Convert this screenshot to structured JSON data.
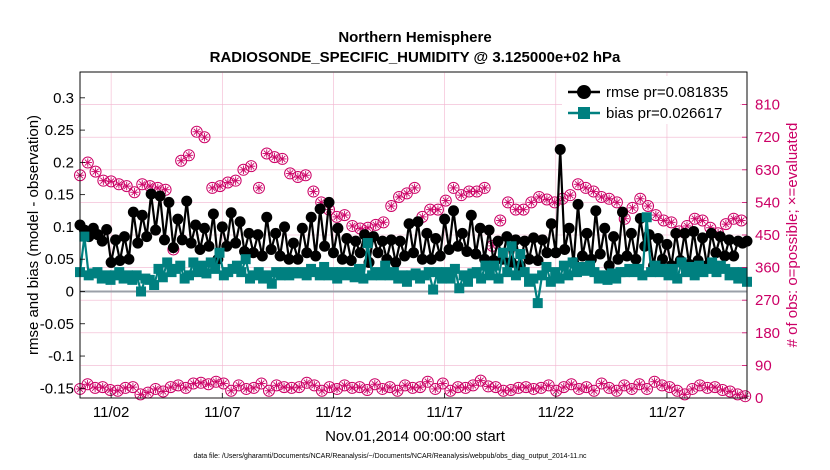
{
  "chart_data": {
    "type": "line",
    "title": "Northern Hemisphere",
    "subtitle": "RADIOSONDE_SPECIFIC_HUMIDITY @ 3.125000e+02 hPa",
    "xlabel": "Nov.01,2014 00:00:00 start",
    "ylabel": "rmse and bias (model - observation)",
    "y2label": "# of obs: o=possible; ×=evaluated",
    "footnote": "data file: /Users/gharamti/Documents/NCAR/Reanalysis/~/Documents/NCAR/Reanalysis/webpub/obs_diag_output_2014-11.nc",
    "xlim": [
      0.6,
      30.6
    ],
    "ylim": [
      -0.165,
      0.34
    ],
    "y2lim": [
      0,
      900
    ],
    "x_ticks": [
      2,
      7,
      12,
      17,
      22,
      27
    ],
    "x_tick_labels": [
      "11/02",
      "11/07",
      "11/12",
      "11/17",
      "11/22",
      "11/27"
    ],
    "y_ticks": [
      -0.15,
      -0.1,
      -0.05,
      0,
      0.05,
      0.1,
      0.15,
      0.2,
      0.25,
      0.3
    ],
    "y_tick_labels": [
      "-0.15",
      "-0.1",
      "-0.05",
      "0",
      "0.05",
      "0.1",
      "0.15",
      "0.2",
      "0.25",
      "0.3"
    ],
    "y2_ticks": [
      0,
      90,
      180,
      270,
      360,
      450,
      540,
      630,
      720,
      810
    ],
    "y2_tick_labels": [
      "0",
      "90",
      "180",
      "270",
      "360",
      "450",
      "540",
      "630",
      "720",
      "810"
    ],
    "zero_line": 0,
    "colors": {
      "rmse": "#000000",
      "bias": "#008080",
      "obs": "#cc0066",
      "zero_line": "#9aa0a8",
      "grid": "#f2b5cf",
      "left_axis": "#000000",
      "right_axis": "#cc0066"
    },
    "legend_position": "top-right",
    "series": [
      {
        "name": "rmse",
        "label": "rmse pr=0.081835",
        "axis": "left",
        "values": [
          0.103,
          0.095,
          0.085,
          0.098,
          0.088,
          0.078,
          0.096,
          0.045,
          0.08,
          0.048,
          0.085,
          0.05,
          0.123,
          0.075,
          0.118,
          0.085,
          0.151,
          0.095,
          0.148,
          0.08,
          0.138,
          0.068,
          0.112,
          0.08,
          0.14,
          0.075,
          0.103,
          0.065,
          0.098,
          0.07,
          0.12,
          0.05,
          0.1,
          0.07,
          0.122,
          0.075,
          0.108,
          0.062,
          0.09,
          0.06,
          0.088,
          0.055,
          0.115,
          0.065,
          0.09,
          0.055,
          0.1,
          0.05,
          0.075,
          0.05,
          0.098,
          0.06,
          0.115,
          0.055,
          0.128,
          0.07,
          0.138,
          0.06,
          0.098,
          0.05,
          0.082,
          0.048,
          0.078,
          0.06,
          0.088,
          0.045,
          0.085,
          0.06,
          0.078,
          0.05,
          0.08,
          0.045,
          0.078,
          0.055,
          0.105,
          0.06,
          0.108,
          0.05,
          0.09,
          0.05,
          0.082,
          0.055,
          0.112,
          0.065,
          0.125,
          0.07,
          0.09,
          0.062,
          0.118,
          0.058,
          0.098,
          0.05,
          0.095,
          0.048,
          0.078,
          0.05,
          0.085,
          0.045,
          0.08,
          0.04,
          0.078,
          0.05,
          0.083,
          0.048,
          0.08,
          0.06,
          0.105,
          0.06,
          0.22,
          0.065,
          0.098,
          0.045,
          0.135,
          0.055,
          0.09,
          0.05,
          0.125,
          0.058,
          0.098,
          0.04,
          0.085,
          0.05,
          0.123,
          0.055,
          0.09,
          0.05,
          0.113,
          0.07,
          0.088,
          0.04,
          0.082,
          0.05,
          0.073,
          0.04,
          0.09,
          0.048,
          0.09,
          0.042,
          0.093,
          0.048,
          0.083,
          0.04,
          0.09,
          0.06,
          0.085,
          0.055,
          0.08,
          0.055,
          0.078,
          0.075,
          0.078
        ]
      },
      {
        "name": "bias",
        "label": "bias pr=0.026617",
        "axis": "left",
        "values": [
          0.03,
          0.085,
          0.025,
          0.028,
          0.03,
          0.02,
          0.025,
          0.018,
          0.025,
          0.03,
          0.02,
          0.025,
          0.018,
          0.025,
          0.0,
          0.02,
          0.018,
          0.01,
          0.035,
          0.022,
          0.045,
          0.03,
          0.035,
          0.04,
          0.02,
          0.025,
          0.045,
          0.03,
          0.04,
          0.028,
          0.045,
          0.035,
          0.06,
          0.025,
          0.03,
          0.035,
          0.04,
          0.03,
          0.05,
          0.02,
          0.025,
          0.03,
          0.02,
          0.025,
          0.012,
          0.03,
          0.025,
          0.03,
          0.025,
          0.03,
          0.028,
          0.03,
          0.025,
          0.035,
          0.03,
          0.025,
          0.038,
          0.025,
          0.03,
          0.02,
          0.03,
          0.025,
          0.03,
          0.022,
          0.035,
          0.02,
          0.075,
          0.025,
          0.03,
          0.025,
          0.04,
          0.025,
          0.03,
          0.02,
          0.025,
          0.015,
          0.025,
          0.028,
          0.02,
          0.025,
          0.03,
          0.003,
          0.03,
          0.02,
          0.03,
          0.02,
          0.035,
          0.005,
          0.025,
          0.015,
          0.028,
          0.03,
          0.02,
          0.04,
          0.025,
          0.04,
          0.02,
          0.06,
          0.03,
          0.07,
          0.025,
          0.058,
          0.03,
          0.015,
          0.02,
          -0.018,
          0.025,
          0.038,
          0.015,
          0.03,
          0.02,
          0.04,
          0.025,
          0.045,
          0.03,
          0.038,
          0.032,
          0.04,
          0.03,
          0.02,
          0.025,
          0.018,
          0.028,
          0.02,
          0.03,
          0.03,
          0.035,
          0.03,
          0.035,
          0.025,
          0.115,
          0.03,
          0.04,
          0.03,
          0.035,
          0.025,
          0.035,
          0.02,
          0.045,
          0.03,
          0.038,
          0.025,
          0.04,
          0.03,
          0.035,
          0.045,
          0.03,
          0.04,
          0.035,
          0.025,
          0.03,
          0.02,
          0.03,
          0.015
        ]
      },
      {
        "name": "obs possible",
        "label": "o=possible",
        "axis": "right",
        "values": [
          615,
          650,
          625,
          600,
          598,
          590,
          585,
          568,
          590,
          585,
          580,
          575,
          410,
          655,
          670,
          735,
          720,
          580,
          585,
          595,
          600,
          630,
          640,
          580,
          675,
          665,
          660,
          620,
          610,
          615,
          570,
          540,
          520,
          500,
          505,
          475,
          468,
          470,
          478,
          485,
          530,
          555,
          565,
          580,
          500,
          520,
          520,
          545,
          580,
          560,
          570,
          570,
          580,
          420,
          490,
          540,
          520,
          520,
          540,
          555,
          548,
          540,
          550,
          560,
          590,
          580,
          570,
          555,
          550,
          540,
          495,
          525,
          550,
          530,
          505,
          490,
          485,
          460,
          475,
          495,
          490,
          470,
          455,
          480,
          495,
          490
        ],
        "x_start": 0.6,
        "x_step": 0.35
      },
      {
        "name": "obs evaluated",
        "label": "×=evaluated",
        "axis": "right",
        "values": [
          25,
          38,
          28,
          30,
          22,
          20,
          28,
          30,
          10,
          15,
          25,
          18,
          30,
          35,
          28,
          40,
          42,
          38,
          45,
          40,
          20,
          35,
          25,
          28,
          40,
          20,
          35,
          30,
          28,
          30,
          42,
          35,
          20,
          30,
          25,
          35,
          28,
          30,
          22,
          38,
          25,
          30,
          20,
          35,
          28,
          30,
          45,
          25,
          40,
          20,
          30,
          28,
          35,
          48,
          32,
          30,
          20,
          22,
          28,
          30,
          25,
          28,
          35,
          20,
          30,
          38,
          25,
          30,
          20,
          40,
          28,
          20,
          35,
          25,
          38,
          25,
          45,
          35,
          30,
          20,
          10,
          25,
          35,
          28,
          30,
          22,
          18,
          10,
          5
        ],
        "x_start": 0.6,
        "x_step": 0.34
      }
    ]
  }
}
